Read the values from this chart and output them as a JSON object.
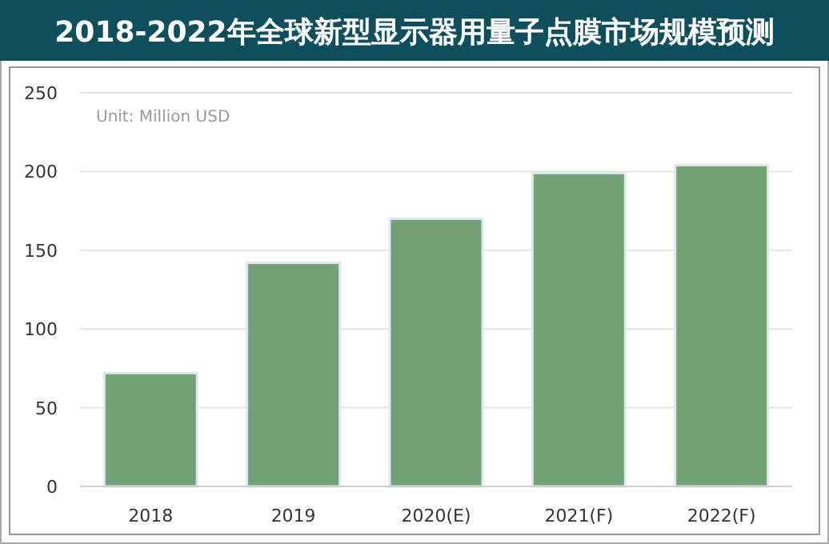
{
  "chart_data": {
    "type": "bar",
    "title": "2018-2022年全球新型显示器用量子点膜市场规模预测",
    "categories": [
      "2018",
      "2019",
      "2020(E)",
      "2021(F)",
      "2022(F)"
    ],
    "values": [
      72,
      142,
      170,
      199,
      204
    ],
    "color": "#70a275",
    "ylim": [
      0,
      250
    ],
    "yticks": [
      0,
      50,
      100,
      150,
      200,
      250
    ],
    "grid": "y",
    "annotations": [
      "Unit: Million USD"
    ]
  }
}
